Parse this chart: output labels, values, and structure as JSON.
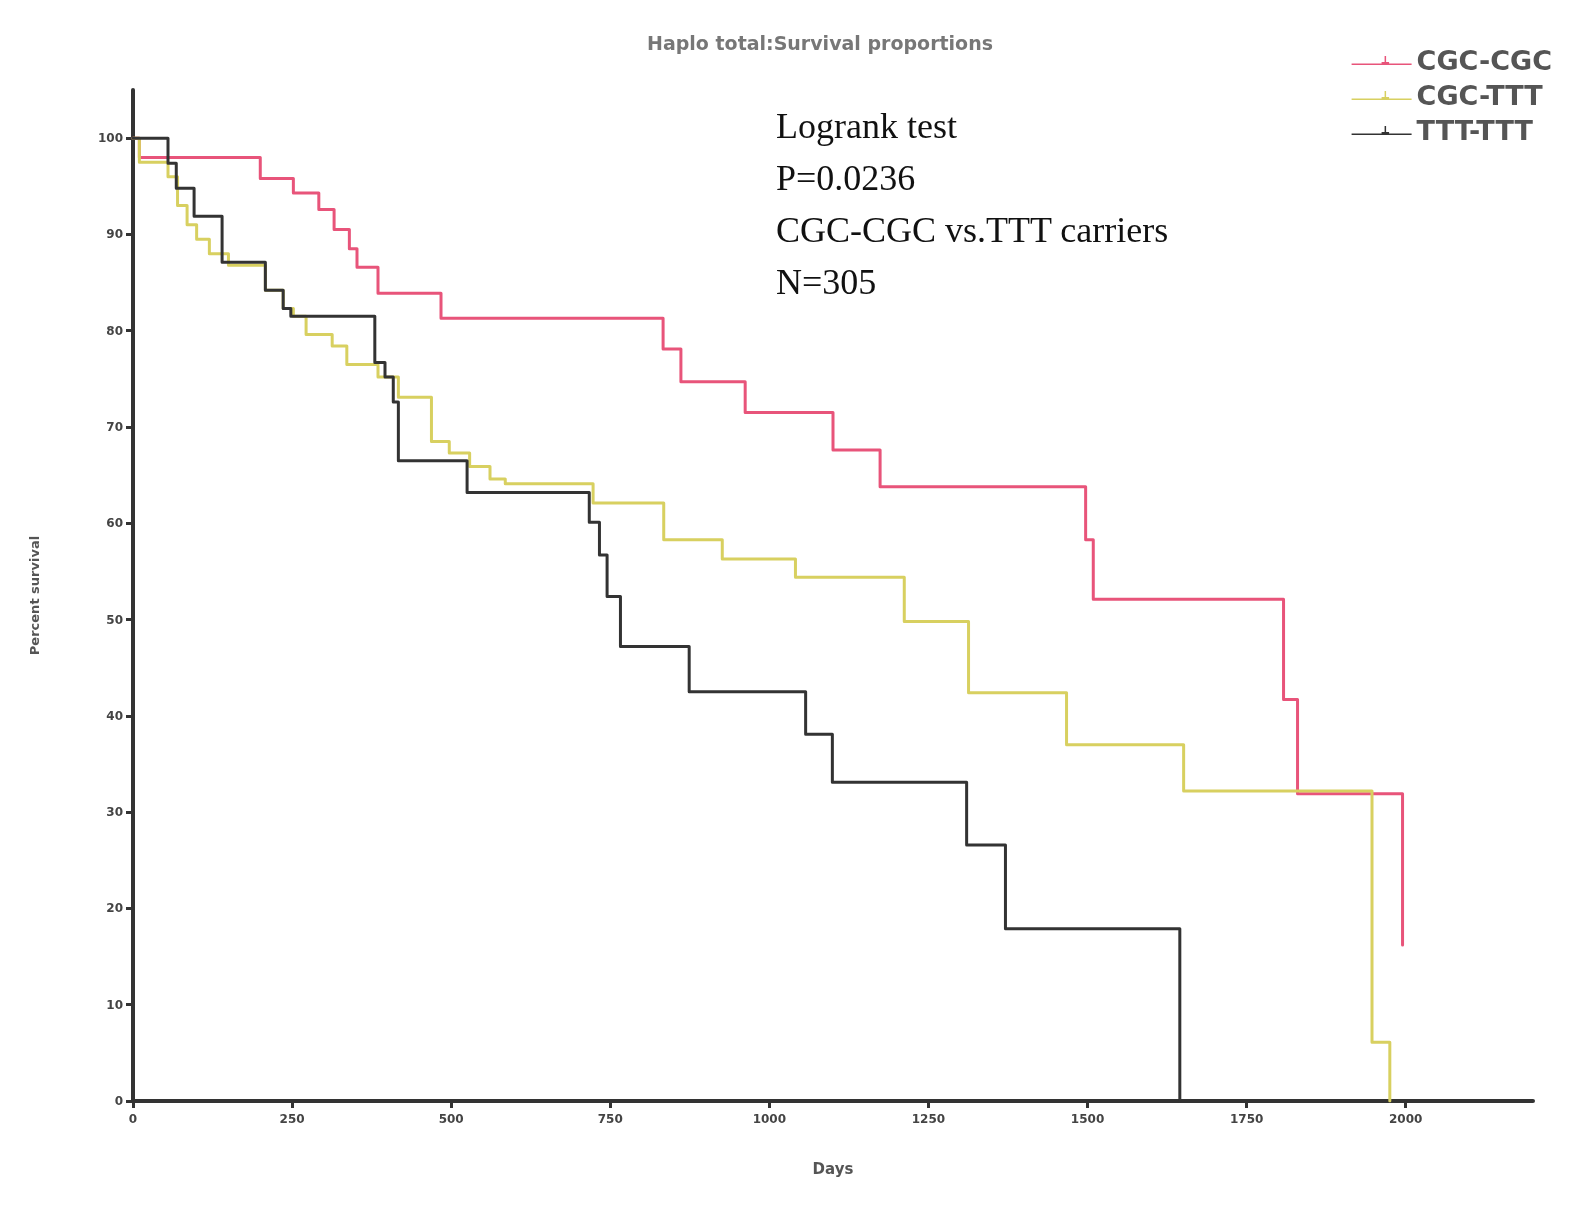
{
  "chart_data": {
    "type": "step",
    "title": "Haplo total:Survival proportions",
    "xlabel": "Days",
    "ylabel": "Percent survival",
    "xlim": [
      0,
      2200
    ],
    "ylim": [
      0,
      105
    ],
    "xticks": [
      0,
      250,
      500,
      750,
      1000,
      1250,
      1500,
      1750,
      2000
    ],
    "yticks": [
      0,
      10,
      20,
      30,
      40,
      50,
      60,
      70,
      80,
      90,
      100
    ],
    "grid": false,
    "legend": "top right",
    "marker": "none",
    "line_style": "solid",
    "annotations": [
      "Logrank test",
      "P=0.0236",
      "CGC-CGC vs.TTT carriers",
      "N=305"
    ],
    "series": [
      {
        "name": "CGC-CGC",
        "color": "#e8547a",
        "x": [
          0,
          10,
          200,
          252,
          292,
          316,
          340,
          352,
          385,
          484,
          833,
          861,
          962,
          1100,
          1174,
          1497,
          1509,
          1808,
          1830,
          1995
        ],
        "values": [
          100,
          98,
          95.8,
          94.3,
          92.6,
          90.5,
          88.5,
          86.6,
          83.9,
          81.3,
          78.1,
          74.7,
          71.5,
          67.6,
          63.8,
          58.3,
          52.1,
          41.7,
          31.9,
          16.2
        ]
      },
      {
        "name": "CGC-TTT",
        "color": "#d8d060",
        "x": [
          0,
          10,
          55,
          70,
          85,
          100,
          120,
          150,
          208,
          236,
          252,
          272,
          313,
          336,
          385,
          417,
          469,
          497,
          529,
          561,
          585,
          723,
          834,
          926,
          1041,
          1212,
          1313,
          1467,
          1651,
          1947,
          1975
        ],
        "values": [
          100,
          97.5,
          96,
          93,
          91,
          89.5,
          88,
          86.8,
          84.2,
          82.3,
          81.5,
          79.6,
          78.4,
          76.5,
          75.2,
          73.1,
          68.5,
          67.3,
          65.9,
          64.6,
          64.1,
          62.1,
          58.3,
          56.3,
          54.4,
          49.8,
          42.4,
          37,
          32.2,
          6.1,
          0
        ]
      },
      {
        "name": "TTT-TTT",
        "color": "#333333",
        "x": [
          0,
          55,
          68,
          96,
          140,
          208,
          236,
          248,
          380,
          396,
          409,
          417,
          525,
          717,
          733,
          745,
          766,
          874,
          1057,
          1099,
          1310,
          1371,
          1645
        ],
        "values": [
          100,
          97.4,
          94.8,
          91.9,
          87.1,
          84.2,
          82.3,
          81.5,
          76.7,
          75.2,
          72.6,
          66.5,
          63.2,
          60.1,
          56.7,
          52.4,
          47.2,
          42.5,
          38.1,
          33.1,
          26.6,
          17.9,
          0
        ]
      }
    ]
  }
}
